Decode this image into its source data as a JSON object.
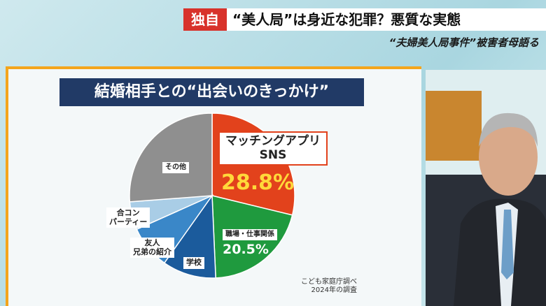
{
  "banner": {
    "tag": "独自",
    "headline": "“美人局”は身近な犯罪？悪質な実態",
    "subheadline": "“夫婦美人局事件”被害者母語る"
  },
  "chart_data": {
    "type": "pie",
    "title": "結婚相手との“出会いのきっかけ”",
    "categories": [
      "マッチングアプリ\nSNS",
      "職場・仕事関係",
      "学校",
      "友人\n兄弟の紹介",
      "合コン\nパーティー",
      "その他"
    ],
    "values": [
      28.8,
      20.5,
      10.5,
      8.5,
      5.5,
      26.2
    ],
    "value_labels": [
      "28.8%",
      "20.5%",
      null,
      null,
      null,
      null
    ],
    "colors": [
      "#e2421c",
      "#1f9a3e",
      "#1b5b9c",
      "#3a87c8",
      "#a9cde6",
      "#8f8f8f"
    ],
    "source": "こども家庭庁調べ\n2024年の調査"
  }
}
